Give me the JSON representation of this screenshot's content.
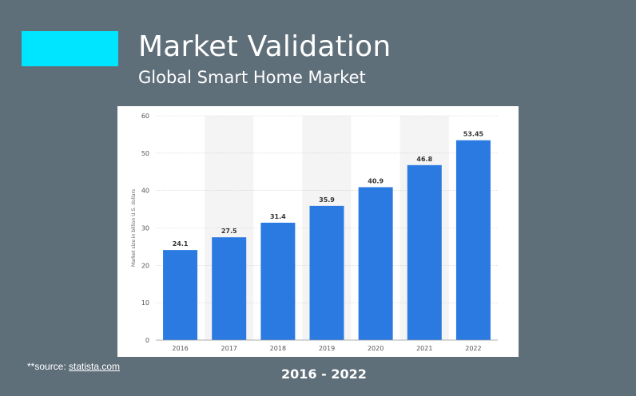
{
  "slide": {
    "title": "Market Validation",
    "subtitle": "Global Smart Home Market",
    "accent_color": "#00e5ff",
    "background_color": "#5f6f7a",
    "source_prefix": "**source: ",
    "source_link": "statista.com",
    "range_label": "2016 - 2022"
  },
  "chart_data": {
    "type": "bar",
    "categories": [
      "2016",
      "2017",
      "2018",
      "2019",
      "2020",
      "2021",
      "2022"
    ],
    "values": [
      24.1,
      27.5,
      31.4,
      35.9,
      40.9,
      46.8,
      53.45
    ],
    "value_labels": [
      "24.1",
      "27.5",
      "31.4",
      "35.9",
      "40.9",
      "46.8",
      "53.45"
    ],
    "ylabel": "Market size in billion U.S. dollars",
    "ylim": [
      0,
      60
    ],
    "yticks": [
      0,
      10,
      20,
      30,
      40,
      50,
      60
    ],
    "grid": true,
    "bar_color": "#2a7ae2"
  }
}
